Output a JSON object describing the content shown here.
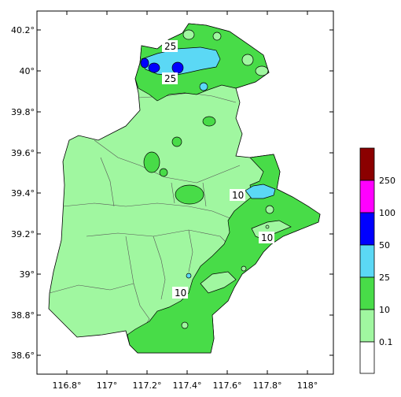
{
  "map": {
    "lon_ticks": [
      "116.8°",
      "117°",
      "117.2°",
      "117.4°",
      "117.6°",
      "117.8°",
      "118°"
    ],
    "lat_ticks": [
      "40.2°",
      "40°",
      "39.8°",
      "39.6°",
      "39.4°",
      "39.2°",
      "39°",
      "38.8°",
      "38.6°"
    ],
    "contour_labels": [
      "25",
      "25",
      "10",
      "10",
      "10"
    ]
  },
  "legend": {
    "labels": [
      "250",
      "100",
      "50",
      "25",
      "10",
      "0.1"
    ],
    "colors": [
      "#8b0000",
      "#ff00ff",
      "#0000ff",
      "#5bd8f5",
      "#48dc48",
      "#a0f7a0",
      "#ffffff"
    ]
  },
  "palette": {
    "light_green": "#a0f7a0",
    "green": "#48dc48",
    "cyan": "#5bd8f5",
    "blue": "#0000ff",
    "boundary": "#555555"
  }
}
